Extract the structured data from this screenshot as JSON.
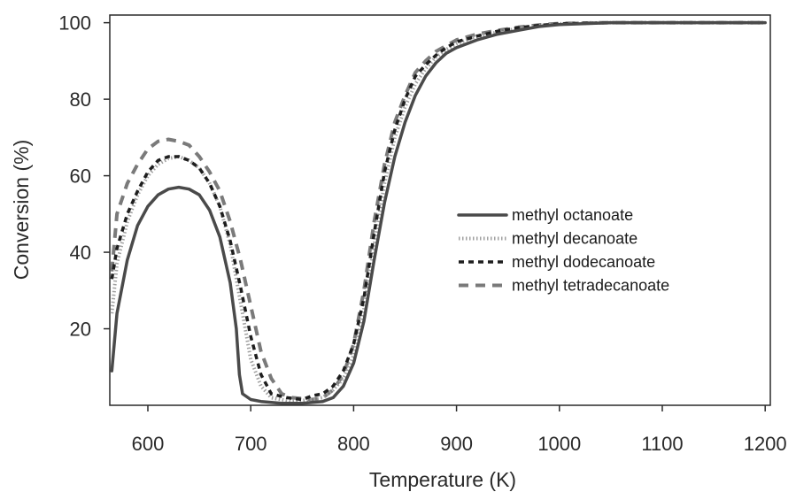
{
  "chart_data": {
    "type": "line",
    "title": "",
    "xlabel": "Temperature (K)",
    "ylabel": "Conversion (%)",
    "xlim": [
      563,
      1205
    ],
    "ylim": [
      0,
      102
    ],
    "xticks": [
      600,
      700,
      800,
      900,
      1000,
      1100,
      1200
    ],
    "yticks": [
      20,
      40,
      60,
      80,
      100
    ],
    "grid": false,
    "legend_position": "center-right",
    "series": [
      {
        "name": "methyl octanoate",
        "color": "#4a4a4a",
        "style": "solid",
        "points": [
          [
            565,
            9
          ],
          [
            570,
            24
          ],
          [
            580,
            38
          ],
          [
            590,
            47
          ],
          [
            600,
            52
          ],
          [
            610,
            55
          ],
          [
            620,
            56.5
          ],
          [
            630,
            57
          ],
          [
            640,
            56.5
          ],
          [
            650,
            55
          ],
          [
            660,
            51
          ],
          [
            670,
            44
          ],
          [
            680,
            32
          ],
          [
            686,
            20
          ],
          [
            689,
            8
          ],
          [
            692,
            3
          ],
          [
            700,
            1.5
          ],
          [
            710,
            1
          ],
          [
            730,
            0.5
          ],
          [
            750,
            0.5
          ],
          [
            770,
            1
          ],
          [
            780,
            2
          ],
          [
            790,
            5
          ],
          [
            800,
            11
          ],
          [
            810,
            22
          ],
          [
            820,
            38
          ],
          [
            830,
            53
          ],
          [
            840,
            65
          ],
          [
            850,
            74
          ],
          [
            860,
            81
          ],
          [
            870,
            86
          ],
          [
            880,
            89.5
          ],
          [
            890,
            92
          ],
          [
            900,
            93.5
          ],
          [
            920,
            95.5
          ],
          [
            940,
            97
          ],
          [
            960,
            98
          ],
          [
            980,
            99
          ],
          [
            1000,
            99.5
          ],
          [
            1050,
            100
          ],
          [
            1100,
            100
          ],
          [
            1150,
            100
          ],
          [
            1200,
            100
          ]
        ]
      },
      {
        "name": "methyl decanoate",
        "color": "#a0a0a0",
        "style": "dotted",
        "points": [
          [
            565,
            24
          ],
          [
            570,
            37
          ],
          [
            580,
            48
          ],
          [
            590,
            55
          ],
          [
            600,
            60
          ],
          [
            610,
            63
          ],
          [
            620,
            64.5
          ],
          [
            630,
            65
          ],
          [
            640,
            64
          ],
          [
            650,
            62
          ],
          [
            660,
            58
          ],
          [
            670,
            52
          ],
          [
            680,
            42
          ],
          [
            690,
            27
          ],
          [
            700,
            12
          ],
          [
            710,
            5
          ],
          [
            720,
            2
          ],
          [
            740,
            1
          ],
          [
            760,
            1.5
          ],
          [
            770,
            2
          ],
          [
            780,
            4
          ],
          [
            790,
            7
          ],
          [
            800,
            13
          ],
          [
            810,
            25
          ],
          [
            820,
            42
          ],
          [
            830,
            58
          ],
          [
            840,
            70
          ],
          [
            850,
            78
          ],
          [
            860,
            84
          ],
          [
            870,
            88
          ],
          [
            880,
            91
          ],
          [
            890,
            93
          ],
          [
            900,
            94.5
          ],
          [
            920,
            96.5
          ],
          [
            940,
            97.5
          ],
          [
            960,
            98.5
          ],
          [
            980,
            99.2
          ],
          [
            1000,
            99.7
          ],
          [
            1050,
            100
          ],
          [
            1100,
            100
          ],
          [
            1150,
            100
          ],
          [
            1200,
            100
          ]
        ]
      },
      {
        "name": "methyl dodecanoate",
        "color": "#1e1e1e",
        "style": "dashed",
        "points": [
          [
            565,
            33
          ],
          [
            570,
            41
          ],
          [
            580,
            50
          ],
          [
            590,
            56
          ],
          [
            600,
            61
          ],
          [
            610,
            64
          ],
          [
            620,
            65
          ],
          [
            630,
            65
          ],
          [
            640,
            64
          ],
          [
            650,
            62
          ],
          [
            660,
            58
          ],
          [
            670,
            52
          ],
          [
            680,
            43
          ],
          [
            690,
            31
          ],
          [
            700,
            18
          ],
          [
            710,
            8
          ],
          [
            720,
            3
          ],
          [
            735,
            2
          ],
          [
            750,
            1.5
          ],
          [
            760,
            2.5
          ],
          [
            770,
            3
          ],
          [
            780,
            5
          ],
          [
            790,
            9
          ],
          [
            800,
            16
          ],
          [
            810,
            28
          ],
          [
            820,
            45
          ],
          [
            830,
            61
          ],
          [
            840,
            72
          ],
          [
            850,
            80
          ],
          [
            860,
            86
          ],
          [
            870,
            89
          ],
          [
            880,
            91.5
          ],
          [
            890,
            93.5
          ],
          [
            900,
            95
          ],
          [
            920,
            96.5
          ],
          [
            940,
            97.8
          ],
          [
            960,
            98.7
          ],
          [
            980,
            99.3
          ],
          [
            1000,
            99.7
          ],
          [
            1050,
            100
          ],
          [
            1100,
            100
          ],
          [
            1150,
            100
          ],
          [
            1200,
            100
          ]
        ]
      },
      {
        "name": "methyl tetradecanoate",
        "color": "#7a7a7a",
        "style": "long-dashed",
        "points": [
          [
            565,
            35
          ],
          [
            570,
            50
          ],
          [
            580,
            58
          ],
          [
            590,
            63
          ],
          [
            600,
            67
          ],
          [
            610,
            69
          ],
          [
            620,
            69.5
          ],
          [
            630,
            69
          ],
          [
            640,
            68
          ],
          [
            650,
            65
          ],
          [
            660,
            61
          ],
          [
            670,
            56
          ],
          [
            680,
            48
          ],
          [
            690,
            38
          ],
          [
            700,
            26
          ],
          [
            710,
            14
          ],
          [
            720,
            7
          ],
          [
            730,
            3
          ],
          [
            740,
            2
          ],
          [
            760,
            1.5
          ],
          [
            770,
            2
          ],
          [
            780,
            4
          ],
          [
            790,
            8
          ],
          [
            800,
            16
          ],
          [
            810,
            30
          ],
          [
            820,
            48
          ],
          [
            830,
            63
          ],
          [
            840,
            74
          ],
          [
            850,
            81
          ],
          [
            860,
            87
          ],
          [
            870,
            90
          ],
          [
            880,
            92.5
          ],
          [
            890,
            94
          ],
          [
            900,
            95.5
          ],
          [
            920,
            97
          ],
          [
            940,
            98
          ],
          [
            960,
            98.8
          ],
          [
            980,
            99.4
          ],
          [
            1000,
            99.8
          ],
          [
            1050,
            100
          ],
          [
            1100,
            100
          ],
          [
            1150,
            100
          ],
          [
            1200,
            100
          ]
        ]
      }
    ]
  }
}
